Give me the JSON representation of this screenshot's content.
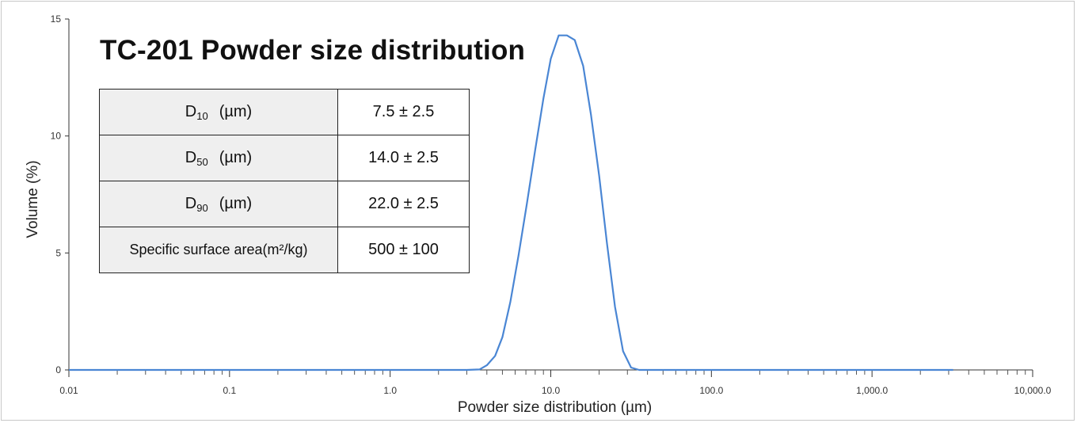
{
  "chart_data": {
    "type": "line",
    "title": "TC-201 Powder size distribution",
    "xlabel": "Powder size distribution (µm)",
    "ylabel": "Volume (%)",
    "x_scale": "log",
    "xlim": [
      0.01,
      10000
    ],
    "ylim": [
      0,
      15
    ],
    "x_ticks": [
      "0.01",
      "0.1",
      "1.0",
      "10.0",
      "100.0",
      "1,000.0",
      "10,000.0"
    ],
    "y_ticks": [
      "0",
      "5",
      "10",
      "15"
    ],
    "grid": false,
    "series": [
      {
        "color": "#4a86d4",
        "x": [
          0.01,
          3.0,
          3.6,
          4.0,
          4.5,
          5.0,
          5.6,
          6.3,
          7.1,
          8.0,
          9.0,
          10.0,
          11.2,
          12.6,
          14.1,
          15.9,
          17.8,
          20.0,
          22.4,
          25.1,
          28.2,
          31.6,
          35.5,
          40.0,
          100,
          1000,
          3200
        ],
        "y": [
          0,
          0,
          0.02,
          0.2,
          0.6,
          1.4,
          2.9,
          4.9,
          7.1,
          9.4,
          11.6,
          13.3,
          14.3,
          14.3,
          14.1,
          13.0,
          10.9,
          8.3,
          5.4,
          2.7,
          0.8,
          0.1,
          0,
          0,
          0,
          0,
          0
        ]
      }
    ]
  },
  "table": {
    "rows": [
      {
        "label": "D",
        "sub": "10",
        "unit": "(µm)",
        "value": "7.5 ± 2.5"
      },
      {
        "label": "D",
        "sub": "50",
        "unit": "(µm)",
        "value": "14.0 ± 2.5"
      },
      {
        "label": "D",
        "sub": "90",
        "unit": "(µm)",
        "value": "22.0 ± 2.5"
      },
      {
        "label": "Specific surface area",
        "sub": "",
        "unit": "(m²/kg)",
        "value": "500 ± 100"
      }
    ]
  }
}
